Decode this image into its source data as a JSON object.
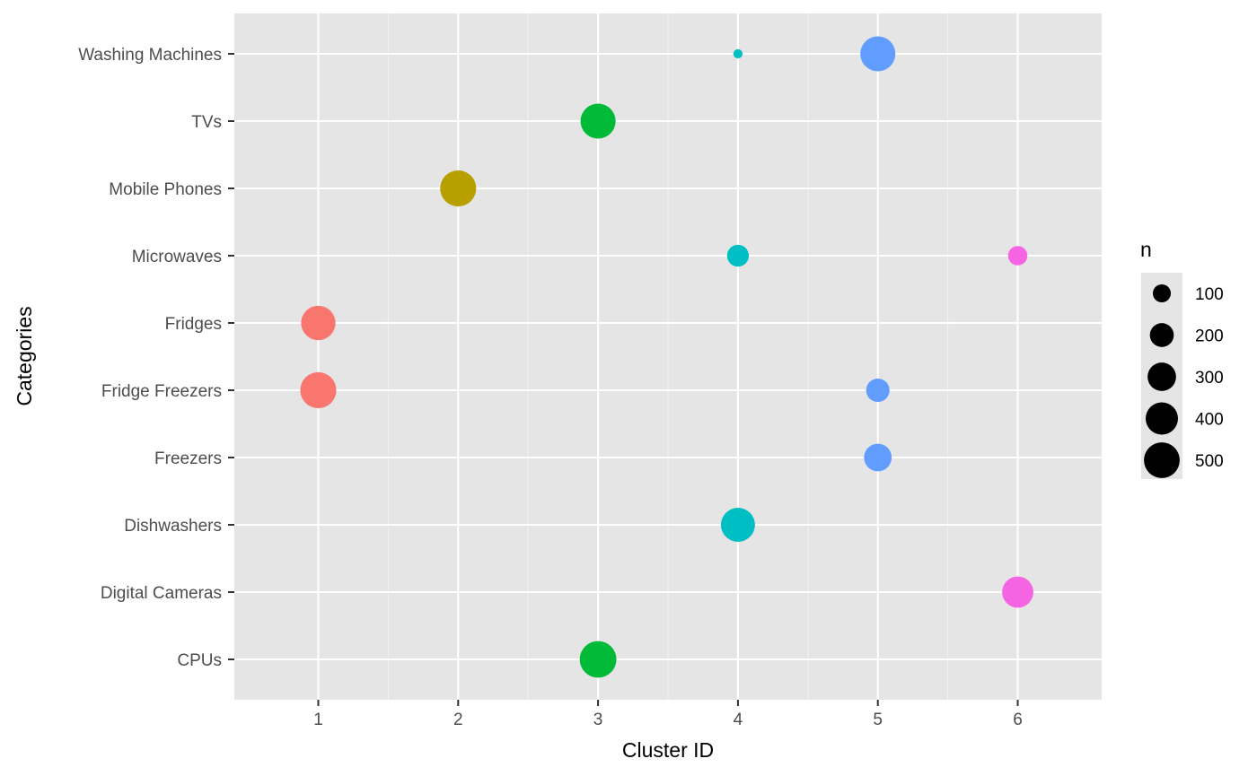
{
  "chart_data": {
    "type": "scatter",
    "title": "",
    "xlabel": "Cluster ID",
    "ylabel": "Categories",
    "xlim": [
      0.4,
      6.6
    ],
    "x_ticks": [
      "1",
      "2",
      "3",
      "4",
      "5",
      "6"
    ],
    "categories": [
      "CPUs",
      "Digital Cameras",
      "Dishwashers",
      "Freezers",
      "Fridge Freezers",
      "Fridges",
      "Microwaves",
      "Mobile Phones",
      "TVs",
      "Washing Machines"
    ],
    "grid": true,
    "legend": {
      "title": "n",
      "position": "right",
      "entries": [
        "100",
        "200",
        "300",
        "400",
        "500"
      ]
    },
    "cluster_colors": {
      "1": "#F8766D",
      "2": "#B79F00",
      "3": "#00BA38",
      "4": "#00BFC4",
      "5": "#619CFF",
      "6": "#F564E3"
    },
    "points": [
      {
        "category": "Washing Machines",
        "x": 4,
        "n": 15
      },
      {
        "category": "Washing Machines",
        "x": 5,
        "n": 480
      },
      {
        "category": "TVs",
        "x": 3,
        "n": 480
      },
      {
        "category": "Mobile Phones",
        "x": 2,
        "n": 510
      },
      {
        "category": "Microwaves",
        "x": 4,
        "n": 160
      },
      {
        "category": "Microwaves",
        "x": 6,
        "n": 120
      },
      {
        "category": "Fridges",
        "x": 1,
        "n": 460
      },
      {
        "category": "Fridge Freezers",
        "x": 1,
        "n": 510
      },
      {
        "category": "Fridge Freezers",
        "x": 5,
        "n": 190
      },
      {
        "category": "Freezers",
        "x": 5,
        "n": 280
      },
      {
        "category": "Dishwashers",
        "x": 4,
        "n": 450
      },
      {
        "category": "Digital Cameras",
        "x": 6,
        "n": 370
      },
      {
        "category": "CPUs",
        "x": 3,
        "n": 530
      }
    ]
  }
}
